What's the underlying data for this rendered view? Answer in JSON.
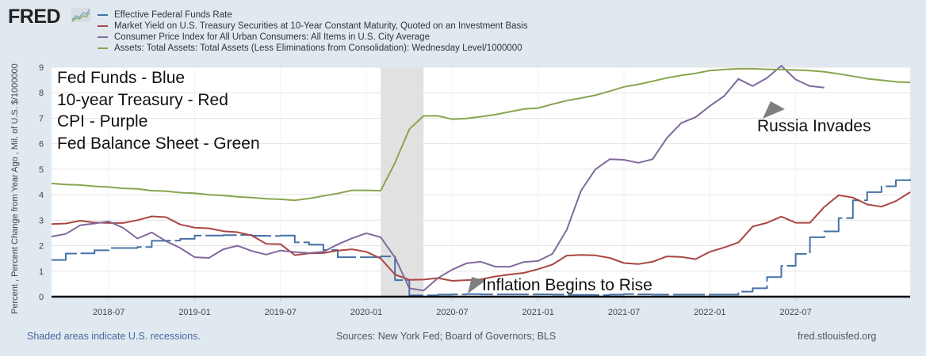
{
  "header": {
    "logo_text": "FRED",
    "logo_icon": "chart-line-icon"
  },
  "legend": [
    {
      "label": "Effective Federal Funds Rate",
      "color": "#4572a7"
    },
    {
      "label": "Market Yield on U.S. Treasury Securities at 10-Year Constant Maturity, Quoted on an Investment Basis",
      "color": "#aa4643"
    },
    {
      "label": "Consumer Price Index for All Urban Consumers: All Items in U.S. City Average",
      "color": "#80699b"
    },
    {
      "label": "Assets: Total Assets: Total Assets (Less Eliminations from Consolidation): Wednesday Level/1000000",
      "color": "#89a54e"
    }
  ],
  "notes": [
    "Fed Funds - Blue",
    "10-year Treasury - Red",
    "CPI - Purple",
    "Fed Balance Sheet - Green"
  ],
  "annotations": {
    "russia": "Russia Invades",
    "inflation": "Inflation Begins to Rise"
  },
  "footer": {
    "recession_note": "Shaded areas indicate U.S. recessions.",
    "sources": "Sources: New York Fed; Board of Governors; BLS",
    "site": "fred.stlouisfed.org"
  },
  "chart_data": {
    "type": "line",
    "title": "",
    "xlabel": "",
    "ylabel": "Percent , Percent Change from Year Ago , Mil. of U.S. $/1000000",
    "ylim": [
      0,
      9
    ],
    "yticks": [
      "0",
      "1",
      "2",
      "3",
      "4",
      "5",
      "6",
      "7",
      "8",
      "9"
    ],
    "xlim": [
      "2018-03",
      "2023-03"
    ],
    "xticks": [
      "2018-07",
      "2019-01",
      "2019-07",
      "2020-01",
      "2020-07",
      "2021-01",
      "2021-07",
      "2022-01",
      "2022-07"
    ],
    "grid": true,
    "recessions": [
      {
        "start": "2020-02",
        "end": "2020-04"
      }
    ],
    "x": [
      "2018-03",
      "2018-04",
      "2018-05",
      "2018-06",
      "2018-07",
      "2018-08",
      "2018-09",
      "2018-10",
      "2018-11",
      "2018-12",
      "2019-01",
      "2019-02",
      "2019-03",
      "2019-04",
      "2019-05",
      "2019-06",
      "2019-07",
      "2019-08",
      "2019-09",
      "2019-10",
      "2019-11",
      "2019-12",
      "2020-01",
      "2020-02",
      "2020-03",
      "2020-04",
      "2020-05",
      "2020-06",
      "2020-07",
      "2020-08",
      "2020-09",
      "2020-10",
      "2020-11",
      "2020-12",
      "2021-01",
      "2021-02",
      "2021-03",
      "2021-04",
      "2021-05",
      "2021-06",
      "2021-07",
      "2021-08",
      "2021-09",
      "2021-10",
      "2021-11",
      "2021-12",
      "2022-01",
      "2022-02",
      "2022-03",
      "2022-04",
      "2022-05",
      "2022-06",
      "2022-07",
      "2022-08",
      "2022-09",
      "2022-10",
      "2022-11",
      "2022-12",
      "2023-01",
      "2023-02",
      "2023-03"
    ],
    "series": [
      {
        "name": "Effective Federal Funds Rate",
        "color": "#4572a7",
        "values": [
          1.44,
          1.69,
          1.7,
          1.82,
          1.91,
          1.91,
          1.95,
          2.19,
          2.2,
          2.27,
          2.4,
          2.4,
          2.41,
          2.42,
          2.39,
          2.38,
          2.4,
          2.13,
          2.04,
          1.83,
          1.55,
          1.55,
          1.55,
          1.58,
          0.65,
          0.05,
          0.05,
          0.08,
          0.09,
          0.1,
          0.09,
          0.09,
          0.09,
          0.09,
          0.09,
          0.08,
          0.07,
          0.07,
          0.06,
          0.08,
          0.1,
          0.09,
          0.08,
          0.08,
          0.08,
          0.08,
          0.08,
          0.08,
          0.2,
          0.33,
          0.77,
          1.21,
          1.68,
          2.33,
          2.56,
          3.08,
          3.78,
          4.1,
          4.33,
          4.57,
          4.65
        ]
      },
      {
        "name": "Market Yield on U.S. Treasury Securities at 10-Year Constant Maturity",
        "color": "#aa4643",
        "values": [
          2.85,
          2.87,
          2.98,
          2.91,
          2.89,
          2.89,
          3.0,
          3.15,
          3.12,
          2.83,
          2.71,
          2.68,
          2.57,
          2.53,
          2.4,
          2.07,
          2.06,
          1.63,
          1.7,
          1.71,
          1.81,
          1.86,
          1.76,
          1.5,
          0.87,
          0.66,
          0.67,
          0.73,
          0.62,
          0.65,
          0.68,
          0.79,
          0.87,
          0.93,
          1.08,
          1.26,
          1.61,
          1.64,
          1.62,
          1.52,
          1.32,
          1.28,
          1.37,
          1.58,
          1.56,
          1.47,
          1.76,
          1.93,
          2.13,
          2.75,
          2.9,
          3.14,
          2.9,
          2.9,
          3.52,
          3.98,
          3.89,
          3.62,
          3.53,
          3.75,
          4.1
        ]
      },
      {
        "name": "Consumer Price Index for All Urban Consumers: All Items",
        "color": "#80699b",
        "values": [
          2.36,
          2.46,
          2.8,
          2.87,
          2.95,
          2.7,
          2.28,
          2.52,
          2.18,
          1.91,
          1.55,
          1.52,
          1.86,
          2.0,
          1.79,
          1.65,
          1.81,
          1.75,
          1.71,
          1.76,
          2.05,
          2.29,
          2.49,
          2.33,
          1.54,
          0.33,
          0.24,
          0.73,
          1.06,
          1.31,
          1.37,
          1.18,
          1.17,
          1.36,
          1.4,
          1.68,
          2.62,
          4.16,
          4.99,
          5.39,
          5.37,
          5.25,
          5.39,
          6.22,
          6.81,
          7.04,
          7.48,
          7.87,
          8.54,
          8.26,
          8.58,
          9.06,
          8.52,
          8.26,
          8.2,
          null,
          null,
          null,
          null,
          null,
          null
        ]
      },
      {
        "name": "Assets: Total Assets (Less Eliminations from Consolidation) / 1000000",
        "color": "#89a54e",
        "values": [
          4.44,
          4.4,
          4.38,
          4.33,
          4.3,
          4.25,
          4.23,
          4.16,
          4.14,
          4.08,
          4.06,
          4.0,
          3.97,
          3.92,
          3.89,
          3.84,
          3.82,
          3.78,
          3.85,
          3.95,
          4.05,
          4.17,
          4.17,
          4.16,
          5.25,
          6.57,
          7.09,
          7.09,
          6.96,
          6.99,
          7.06,
          7.14,
          7.25,
          7.36,
          7.4,
          7.55,
          7.69,
          7.79,
          7.9,
          8.06,
          8.23,
          8.33,
          8.45,
          8.58,
          8.68,
          8.76,
          8.87,
          8.91,
          8.94,
          8.94,
          8.92,
          8.91,
          8.89,
          8.87,
          8.82,
          8.74,
          8.65,
          8.55,
          8.49,
          8.43,
          8.4
        ]
      }
    ]
  }
}
